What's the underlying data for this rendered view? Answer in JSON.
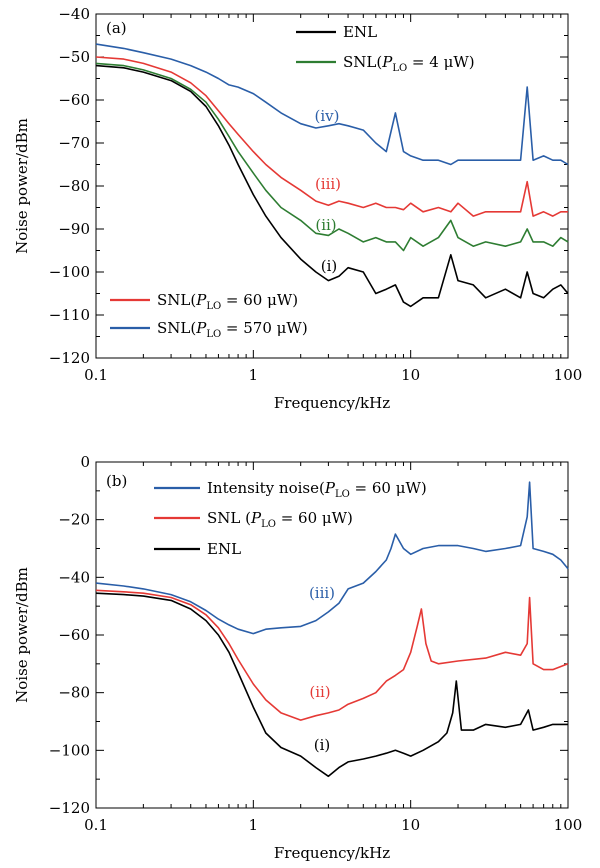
{
  "figure": {
    "panels": [
      {
        "label": "(a)",
        "xlabel": "Frequency/kHz",
        "ylabel": "Noise power/dBm",
        "legend": [
          {
            "name": "ENL",
            "color": "#000000",
            "html": "ENL"
          },
          {
            "name": "SNL(P_LO = 4 μW)",
            "color": "#2e7d32",
            "html": "SNL(<tspan font-style=\"italic\">P</tspan><tspan font-size=\"10\" dy=\"4\">LO</tspan><tspan dy=\"-4\"> = 4 μW)</tspan>"
          },
          {
            "name": "SNL(P_LO = 60 μW)",
            "color": "#e53935",
            "html": "SNL(<tspan font-style=\"italic\">P</tspan><tspan font-size=\"10\" dy=\"4\">LO</tspan><tspan dy=\"-4\"> = 60 μW)</tspan>"
          },
          {
            "name": "SNL(P_LO = 570 μW)",
            "color": "#2a5ea8",
            "html": "SNL(<tspan font-style=\"italic\">P</tspan><tspan font-size=\"10\" dy=\"4\">LO</tspan><tspan dy=\"-4\"> = 570 μW)</tspan>"
          }
        ],
        "curve_labels": [
          {
            "text": "(i)",
            "color": "#000000"
          },
          {
            "text": "(ii)",
            "color": "#2e7d32"
          },
          {
            "text": "(iii)",
            "color": "#e53935"
          },
          {
            "text": "(iv)",
            "color": "#2a5ea8"
          }
        ]
      },
      {
        "label": "(b)",
        "xlabel": "Frequency/kHz",
        "ylabel": "Noise power/dBm",
        "legend": [
          {
            "name": "Intensity noise(P_LO = 60 μW)",
            "color": "#2a5ea8",
            "html": "Intensity noise(<tspan font-style=\"italic\">P</tspan><tspan font-size=\"10\" dy=\"4\">LO</tspan><tspan dy=\"-4\"> = 60 μW)</tspan>"
          },
          {
            "name": "SNL (P_LO = 60 μW)",
            "color": "#e53935",
            "html": "SNL (<tspan font-style=\"italic\">P</tspan><tspan font-size=\"10\" dy=\"4\">LO</tspan><tspan dy=\"-4\"> = 60 μW)</tspan>"
          },
          {
            "name": "ENL",
            "color": "#000000",
            "html": "ENL"
          }
        ],
        "curve_labels": [
          {
            "text": "(i)",
            "color": "#000000"
          },
          {
            "text": "(ii)",
            "color": "#e53935"
          },
          {
            "text": "(iii)",
            "color": "#2a5ea8"
          }
        ]
      }
    ]
  },
  "chart_data": [
    {
      "type": "line",
      "title": "",
      "xlabel": "Frequency/kHz",
      "ylabel": "Noise power/dBm",
      "xscale": "log",
      "xlim": [
        0.1,
        100
      ],
      "ylim": [
        -120,
        -40
      ],
      "xticks": [
        0.1,
        1,
        10,
        100
      ],
      "xtick_labels": [
        "0.1",
        "1",
        "10",
        "100"
      ],
      "yticks": [
        -120,
        -110,
        -100,
        -90,
        -80,
        -70,
        -60,
        -50,
        -40
      ],
      "ytick_labels": [
        "−120",
        "−110",
        "−100",
        "−90",
        "−80",
        "−70",
        "−60",
        "−50",
        "−40"
      ],
      "legend_position": "top-right and bottom-left",
      "series": [
        {
          "name": "ENL",
          "color": "#000000",
          "x": [
            0.1,
            0.15,
            0.2,
            0.3,
            0.4,
            0.5,
            0.6,
            0.7,
            0.8,
            1.0,
            1.2,
            1.5,
            2.0,
            2.5,
            3.0,
            3.5,
            4.0,
            5.0,
            6.0,
            7.0,
            8.0,
            9.0,
            10.0,
            12.0,
            15.0,
            18.0,
            20.0,
            25.0,
            30.0,
            40.0,
            50.0,
            55.0,
            60.0,
            70.0,
            80.0,
            90.0,
            100.0
          ],
          "y": [
            -52,
            -52.5,
            -53.5,
            -55.5,
            -58,
            -61.5,
            -66,
            -70.5,
            -75,
            -82,
            -87,
            -92,
            -97,
            -100,
            -102,
            -101,
            -99,
            -100,
            -105,
            -104,
            -103,
            -107,
            -108,
            -106,
            -106,
            -96,
            -102,
            -103,
            -106,
            -104,
            -106,
            -100,
            -105,
            -106,
            -104,
            -103,
            -105
          ]
        },
        {
          "name": "SNL(P_LO = 4 μW)",
          "color": "#2e7d32",
          "x": [
            0.1,
            0.15,
            0.2,
            0.3,
            0.4,
            0.5,
            0.6,
            0.7,
            0.8,
            1.0,
            1.2,
            1.5,
            2.0,
            2.5,
            3.0,
            3.5,
            4.0,
            5.0,
            6.0,
            7.0,
            8.0,
            9.0,
            10.0,
            12.0,
            15.0,
            18.0,
            20.0,
            25.0,
            30.0,
            40.0,
            50.0,
            55.0,
            60.0,
            70.0,
            80.0,
            90.0,
            100.0
          ],
          "y": [
            -51.5,
            -52,
            -53,
            -55,
            -57.5,
            -60.5,
            -64.5,
            -68.5,
            -72,
            -77,
            -81,
            -85,
            -88,
            -91,
            -91.5,
            -90,
            -91,
            -93,
            -92,
            -93,
            -93,
            -95,
            -92,
            -94,
            -92,
            -88,
            -92,
            -94,
            -93,
            -94,
            -93,
            -90,
            -93,
            -93,
            -94,
            -92,
            -93
          ]
        },
        {
          "name": "SNL(P_LO = 60 μW)",
          "color": "#e53935",
          "x": [
            0.1,
            0.15,
            0.2,
            0.3,
            0.4,
            0.5,
            0.6,
            0.7,
            0.8,
            1.0,
            1.2,
            1.5,
            2.0,
            2.5,
            3.0,
            3.5,
            4.0,
            5.0,
            6.0,
            7.0,
            8.0,
            9.0,
            10.0,
            12.0,
            15.0,
            18.0,
            20.0,
            25.0,
            30.0,
            40.0,
            50.0,
            55.0,
            60.0,
            70.0,
            80.0,
            90.0,
            100.0
          ],
          "y": [
            -50,
            -50.5,
            -51.5,
            -53.5,
            -56,
            -59,
            -62.5,
            -65.5,
            -68,
            -72,
            -75,
            -78,
            -81,
            -83.5,
            -84.5,
            -83.5,
            -84,
            -85,
            -84,
            -85,
            -85,
            -85.5,
            -84,
            -86,
            -85,
            -86,
            -84,
            -87,
            -86,
            -86,
            -86,
            -79,
            -87,
            -86,
            -87,
            -86,
            -86
          ]
        },
        {
          "name": "SNL(P_LO = 570 μW)",
          "color": "#2a5ea8",
          "x": [
            0.1,
            0.15,
            0.2,
            0.3,
            0.4,
            0.5,
            0.6,
            0.7,
            0.8,
            1.0,
            1.2,
            1.5,
            2.0,
            2.5,
            3.0,
            3.5,
            4.0,
            5.0,
            6.0,
            7.0,
            8.0,
            9.0,
            10.0,
            12.0,
            15.0,
            18.0,
            20.0,
            25.0,
            30.0,
            40.0,
            50.0,
            55.0,
            60.0,
            70.0,
            80.0,
            90.0,
            100.0
          ],
          "y": [
            -47,
            -48,
            -49,
            -50.5,
            -52,
            -53.5,
            -55,
            -56.5,
            -57,
            -58.5,
            -60.5,
            -63,
            -65.5,
            -66.5,
            -66,
            -65.5,
            -66,
            -67,
            -70,
            -72,
            -63,
            -72,
            -73,
            -74,
            -74,
            -75,
            -74,
            -74,
            -74,
            -74,
            -74,
            -57,
            -74,
            -73,
            -74,
            -74,
            -75
          ]
        }
      ]
    },
    {
      "type": "line",
      "title": "",
      "xlabel": "Frequency/kHz",
      "ylabel": "Noise power/dBm",
      "xscale": "log",
      "xlim": [
        0.1,
        100
      ],
      "ylim": [
        -120,
        0
      ],
      "xticks": [
        0.1,
        1,
        10,
        100
      ],
      "xtick_labels": [
        "0.1",
        "1",
        "10",
        "100"
      ],
      "yticks": [
        -120,
        -100,
        -80,
        -60,
        -40,
        -20,
        0
      ],
      "ytick_labels": [
        "−120",
        "−100",
        "−80",
        "−60",
        "−40",
        "−20",
        "0"
      ],
      "legend_position": "top",
      "series": [
        {
          "name": "Intensity noise(P_LO = 60 μW)",
          "color": "#2a5ea8",
          "x": [
            0.1,
            0.15,
            0.2,
            0.3,
            0.4,
            0.5,
            0.6,
            0.7,
            0.8,
            1.0,
            1.2,
            1.5,
            2.0,
            2.5,
            3.0,
            3.5,
            4.0,
            5.0,
            6.0,
            7.0,
            7.5,
            8.0,
            9.0,
            10.0,
            12.0,
            15.0,
            20.0,
            25.0,
            30.0,
            40.0,
            50.0,
            55.0,
            57.0,
            60.0,
            70.0,
            80.0,
            90.0,
            100.0
          ],
          "y": [
            -42,
            -43,
            -44,
            -46,
            -48.5,
            -51.5,
            -54.5,
            -56.5,
            -58,
            -59.5,
            -58,
            -57.5,
            -57,
            -55,
            -52,
            -49,
            -44,
            -42,
            -38,
            -34,
            -30,
            -25,
            -30,
            -32,
            -30,
            -29,
            -29,
            -30,
            -31,
            -30,
            -29,
            -19,
            -7,
            -30,
            -31,
            -32,
            -34,
            -37
          ]
        },
        {
          "name": "SNL (P_LO = 60 μW)",
          "color": "#e53935",
          "x": [
            0.1,
            0.15,
            0.2,
            0.3,
            0.4,
            0.5,
            0.6,
            0.7,
            0.8,
            1.0,
            1.2,
            1.5,
            2.0,
            2.5,
            3.0,
            3.5,
            4.0,
            5.0,
            6.0,
            7.0,
            8.0,
            9.0,
            10.0,
            11.0,
            11.7,
            12.5,
            13.5,
            15.0,
            20.0,
            30.0,
            40.0,
            50.0,
            55.0,
            57.0,
            60.0,
            70.0,
            80.0,
            100.0
          ],
          "y": [
            -44.5,
            -45,
            -45.5,
            -47,
            -49.5,
            -53,
            -57.5,
            -63,
            -68.5,
            -77,
            -82.5,
            -87,
            -89.5,
            -88,
            -87,
            -86,
            -84,
            -82,
            -80,
            -76,
            -74,
            -72,
            -66,
            -57,
            -51,
            -63,
            -69,
            -70,
            -69,
            -68,
            -66,
            -67,
            -63,
            -47,
            -70,
            -72,
            -72,
            -70
          ]
        },
        {
          "name": "ENL",
          "color": "#000000",
          "x": [
            0.1,
            0.15,
            0.2,
            0.3,
            0.4,
            0.5,
            0.6,
            0.7,
            0.8,
            1.0,
            1.2,
            1.5,
            2.0,
            2.5,
            3.0,
            3.5,
            4.0,
            5.0,
            6.0,
            7.0,
            8.0,
            9.0,
            10.0,
            12.0,
            15.0,
            17.0,
            18.5,
            19.5,
            21.0,
            25.0,
            30.0,
            40.0,
            50.0,
            56.0,
            60.0,
            70.0,
            80.0,
            100.0
          ],
          "y": [
            -45.5,
            -46,
            -46.5,
            -48,
            -51,
            -55,
            -60,
            -66,
            -73,
            -85,
            -94,
            -99,
            -102,
            -106,
            -109,
            -106,
            -104,
            -103,
            -102,
            -101,
            -100,
            -101,
            -102,
            -100,
            -97,
            -94,
            -87,
            -76,
            -93,
            -93,
            -91,
            -92,
            -91,
            -86,
            -93,
            -92,
            -91,
            -91
          ]
        }
      ]
    }
  ]
}
